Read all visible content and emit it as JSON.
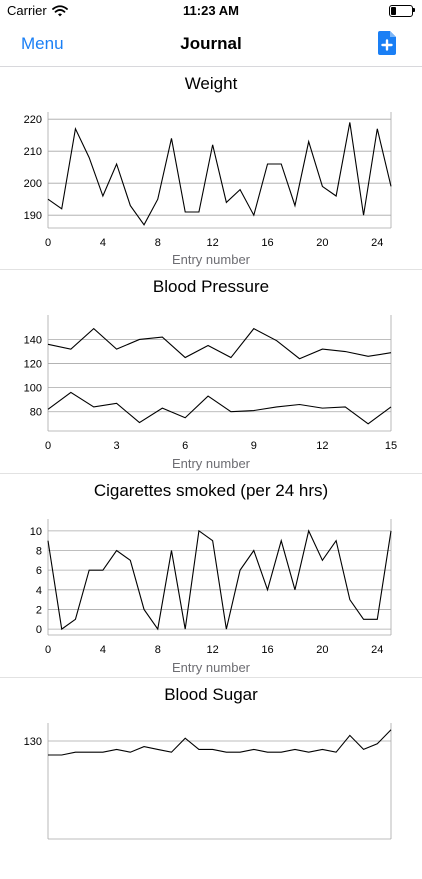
{
  "status_bar": {
    "carrier": "Carrier",
    "time": "11:23 AM"
  },
  "navbar": {
    "menu_label": "Menu",
    "title": "Journal",
    "add_icon": "add-document-icon",
    "accent_color": "#1a7ff5"
  },
  "chart_data": [
    {
      "type": "line",
      "title": "Weight",
      "xlabel": "Entry number",
      "ylabel": "",
      "xlim": [
        0,
        25
      ],
      "ylim": [
        186,
        221
      ],
      "xticks": [
        0,
        4,
        8,
        12,
        16,
        20,
        24
      ],
      "yticks": [
        190,
        200,
        210,
        220
      ],
      "series": [
        {
          "values": [
            195,
            192,
            217,
            208,
            196,
            206,
            193,
            187,
            195,
            214,
            191,
            191,
            212,
            194,
            198,
            190,
            206,
            206,
            193,
            213,
            199,
            196,
            219,
            190,
            217,
            199
          ]
        }
      ]
    },
    {
      "type": "line",
      "title": "Blood Pressure",
      "xlabel": "Entry number",
      "ylabel": "",
      "xlim": [
        0,
        15
      ],
      "ylim": [
        64,
        157
      ],
      "xticks": [
        0,
        3,
        6,
        9,
        12,
        15
      ],
      "yticks": [
        80,
        100,
        120,
        140
      ],
      "series": [
        {
          "values": [
            136,
            132,
            149,
            132,
            140,
            142,
            125,
            135,
            125,
            149,
            139,
            124,
            132,
            130,
            126,
            129
          ]
        },
        {
          "values": [
            82,
            96,
            84,
            87,
            71,
            83,
            75,
            93,
            80,
            81,
            84,
            86,
            83,
            84,
            70,
            84
          ]
        }
      ]
    },
    {
      "type": "line",
      "title": "Cigarettes smoked (per 24 hrs)",
      "xlabel": "Entry number",
      "ylabel": "",
      "xlim": [
        0,
        25
      ],
      "ylim": [
        -0.6,
        10.8
      ],
      "xticks": [
        0,
        4,
        8,
        12,
        16,
        20,
        24
      ],
      "yticks": [
        0,
        2,
        4,
        6,
        8,
        10
      ],
      "series": [
        {
          "values": [
            9,
            0,
            1,
            6,
            6,
            8,
            7,
            2,
            0,
            8,
            0,
            10,
            9,
            0,
            6,
            8,
            4,
            9,
            4,
            10,
            7,
            9,
            3,
            1,
            1,
            10
          ]
        }
      ]
    },
    {
      "type": "line",
      "title": "Blood Sugar",
      "xlabel": "",
      "ylabel": "",
      "xlim": [
        0,
        25
      ],
      "ylim": [
        95,
        135
      ],
      "xticks": [],
      "yticks": [
        130
      ],
      "series": [
        {
          "values": [
            125,
            125,
            126,
            126,
            126,
            127,
            126,
            128,
            127,
            126,
            131,
            127,
            127,
            126,
            126,
            127,
            126,
            126,
            127,
            126,
            127,
            126,
            132,
            127,
            129,
            134
          ]
        }
      ]
    }
  ]
}
